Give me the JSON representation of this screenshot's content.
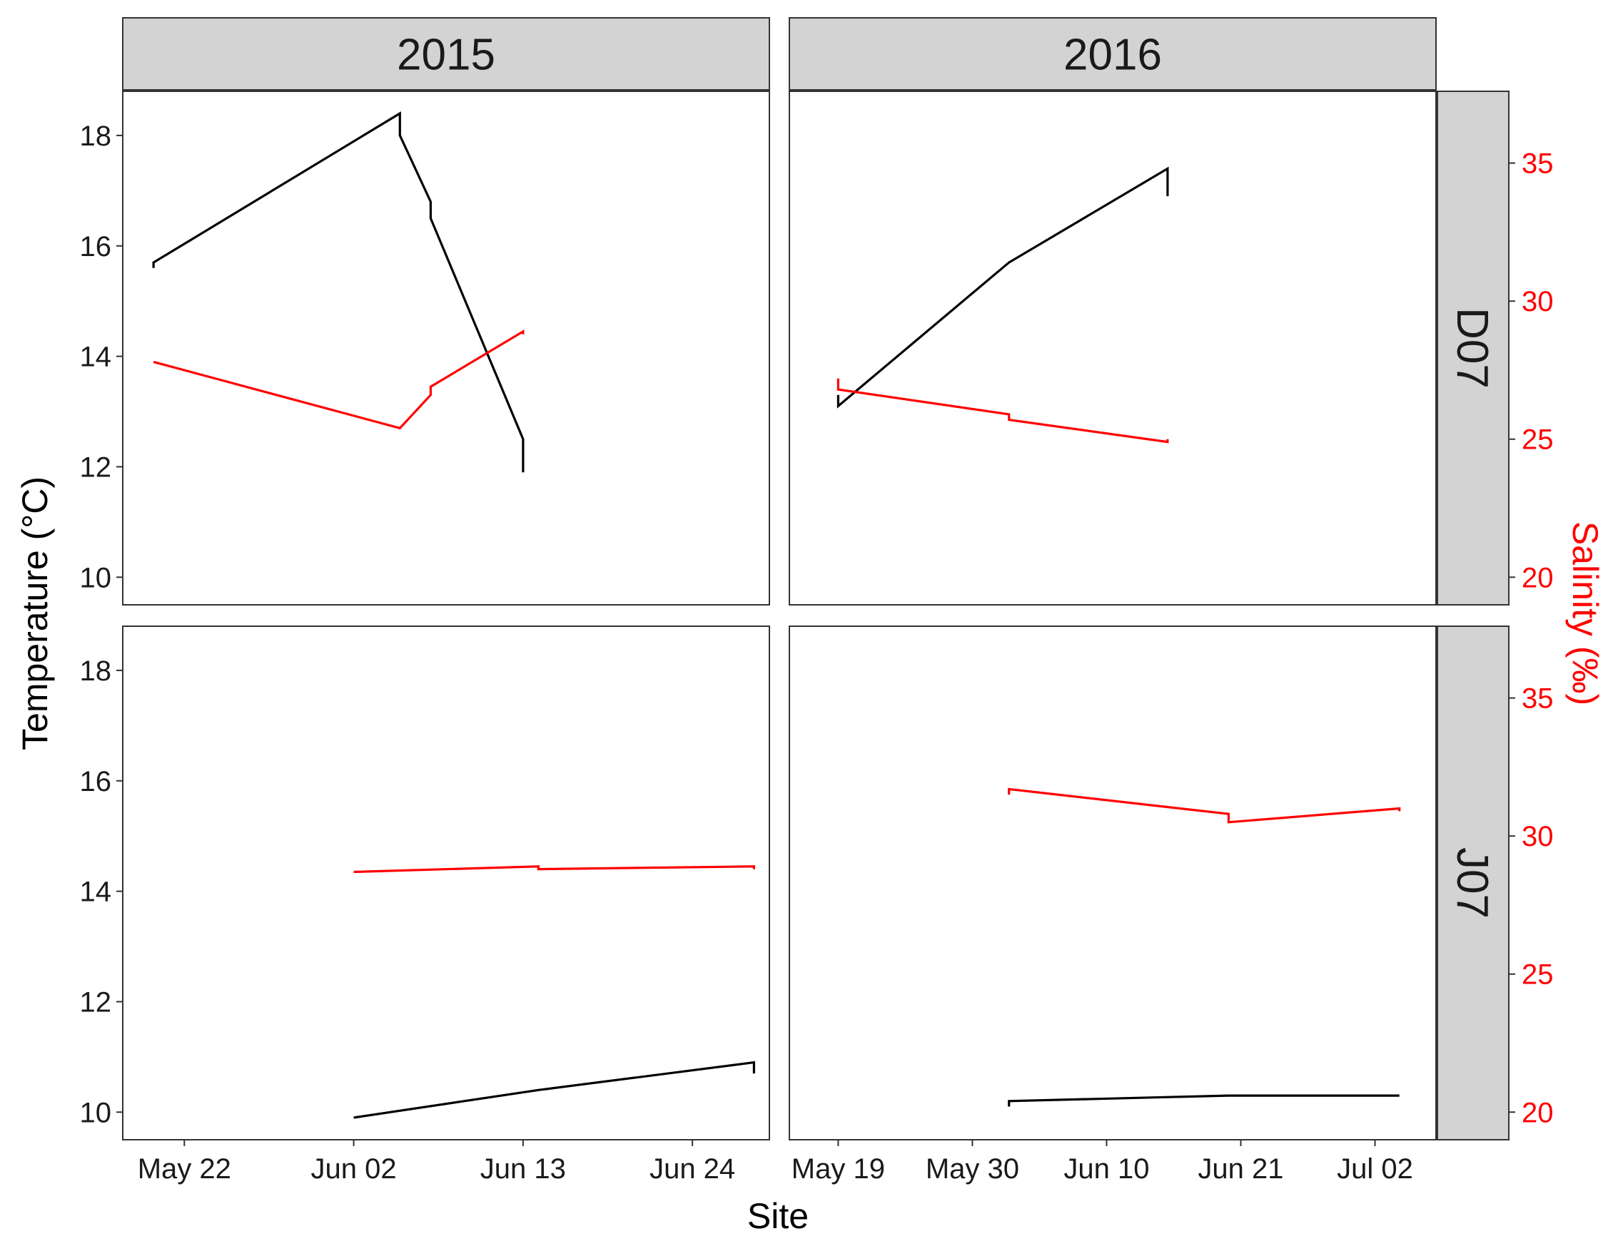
{
  "chart_data": {
    "type": "line",
    "facet_columns": [
      "2015",
      "2016"
    ],
    "facet_rows": [
      "D07",
      "J07"
    ],
    "xlabel": "Site",
    "ylabel": "Temperature (°C)",
    "ylabel_secondary": "Salinity (‰)",
    "ylim": [
      9.5,
      18.8
    ],
    "ylim_secondary": [
      19.0,
      37.6
    ],
    "yticks": [
      10,
      12,
      14,
      16,
      18
    ],
    "yticks_secondary": [
      20,
      25,
      30,
      35
    ],
    "colors": {
      "temperature": "#000000",
      "salinity": "#ff0000"
    },
    "panels": [
      {
        "year": "2015",
        "site": "D07",
        "xlim": [
          "2015-05-18",
          "2015-06-29"
        ],
        "xticks": [
          {
            "date": "2015-05-22",
            "label": "May 22"
          },
          {
            "date": "2015-06-02",
            "label": "Jun 02"
          },
          {
            "date": "2015-06-13",
            "label": "Jun 13"
          },
          {
            "date": "2015-06-24",
            "label": "Jun 24"
          }
        ],
        "temperature": [
          {
            "date": "2015-05-20",
            "value": 15.6
          },
          {
            "date": "2015-05-20",
            "value": 15.7
          },
          {
            "date": "2015-06-05",
            "value": 18.4
          },
          {
            "date": "2015-06-05",
            "value": 18.0
          },
          {
            "date": "2015-06-07",
            "value": 16.8
          },
          {
            "date": "2015-06-07",
            "value": 16.5
          },
          {
            "date": "2015-06-13",
            "value": 12.5
          },
          {
            "date": "2015-06-13",
            "value": 11.9
          }
        ],
        "salinity": [
          {
            "date": "2015-05-20",
            "value": 27.8
          },
          {
            "date": "2015-06-05",
            "value": 25.4
          },
          {
            "date": "2015-06-07",
            "value": 26.6
          },
          {
            "date": "2015-06-07",
            "value": 26.9
          },
          {
            "date": "2015-06-13",
            "value": 28.9
          },
          {
            "date": "2015-06-13",
            "value": 28.8
          }
        ]
      },
      {
        "year": "2016",
        "site": "D07",
        "xlim": [
          "2016-05-15",
          "2016-07-07"
        ],
        "xticks": [
          {
            "date": "2016-05-19",
            "label": "May 19"
          },
          {
            "date": "2016-05-30",
            "label": "May 30"
          },
          {
            "date": "2016-06-10",
            "label": "Jun 10"
          },
          {
            "date": "2016-06-21",
            "label": "Jun 21"
          },
          {
            "date": "2016-07-02",
            "label": "Jul 02"
          }
        ],
        "temperature": [
          {
            "date": "2016-05-19",
            "value": 13.3
          },
          {
            "date": "2016-05-19",
            "value": 13.1
          },
          {
            "date": "2016-06-02",
            "value": 15.7
          },
          {
            "date": "2016-06-15",
            "value": 17.4
          },
          {
            "date": "2016-06-15",
            "value": 16.9
          }
        ],
        "salinity": [
          {
            "date": "2016-05-19",
            "value": 27.2
          },
          {
            "date": "2016-05-19",
            "value": 26.8
          },
          {
            "date": "2016-06-02",
            "value": 25.9
          },
          {
            "date": "2016-06-02",
            "value": 25.7
          },
          {
            "date": "2016-06-15",
            "value": 24.9
          },
          {
            "date": "2016-06-15",
            "value": 25.0
          }
        ]
      },
      {
        "year": "2015",
        "site": "J07",
        "xlim": [
          "2015-05-18",
          "2015-06-29"
        ],
        "xticks": [
          {
            "date": "2015-05-22",
            "label": "May 22"
          },
          {
            "date": "2015-06-02",
            "label": "Jun 02"
          },
          {
            "date": "2015-06-13",
            "label": "Jun 13"
          },
          {
            "date": "2015-06-24",
            "label": "Jun 24"
          }
        ],
        "temperature": [
          {
            "date": "2015-06-02",
            "value": 9.9
          },
          {
            "date": "2015-06-14",
            "value": 10.4
          },
          {
            "date": "2015-06-28",
            "value": 10.9
          },
          {
            "date": "2015-06-28",
            "value": 10.7
          }
        ],
        "salinity": [
          {
            "date": "2015-06-02",
            "value": 28.7
          },
          {
            "date": "2015-06-14",
            "value": 28.9
          },
          {
            "date": "2015-06-14",
            "value": 28.8
          },
          {
            "date": "2015-06-28",
            "value": 28.9
          },
          {
            "date": "2015-06-28",
            "value": 28.8
          }
        ]
      },
      {
        "year": "2016",
        "site": "J07",
        "xlim": [
          "2016-05-15",
          "2016-07-07"
        ],
        "xticks": [
          {
            "date": "2016-05-19",
            "label": "May 19"
          },
          {
            "date": "2016-05-30",
            "label": "May 30"
          },
          {
            "date": "2016-06-10",
            "label": "Jun 10"
          },
          {
            "date": "2016-06-21",
            "label": "Jun 21"
          },
          {
            "date": "2016-07-02",
            "label": "Jul 02"
          }
        ],
        "temperature": [
          {
            "date": "2016-06-02",
            "value": 10.1
          },
          {
            "date": "2016-06-02",
            "value": 10.2
          },
          {
            "date": "2016-06-20",
            "value": 10.3
          },
          {
            "date": "2016-07-04",
            "value": 10.3
          }
        ],
        "salinity": [
          {
            "date": "2016-06-02",
            "value": 31.5
          },
          {
            "date": "2016-06-02",
            "value": 31.7
          },
          {
            "date": "2016-06-20",
            "value": 30.8
          },
          {
            "date": "2016-06-20",
            "value": 30.5
          },
          {
            "date": "2016-07-04",
            "value": 31.0
          },
          {
            "date": "2016-07-04",
            "value": 30.9
          }
        ]
      }
    ]
  }
}
